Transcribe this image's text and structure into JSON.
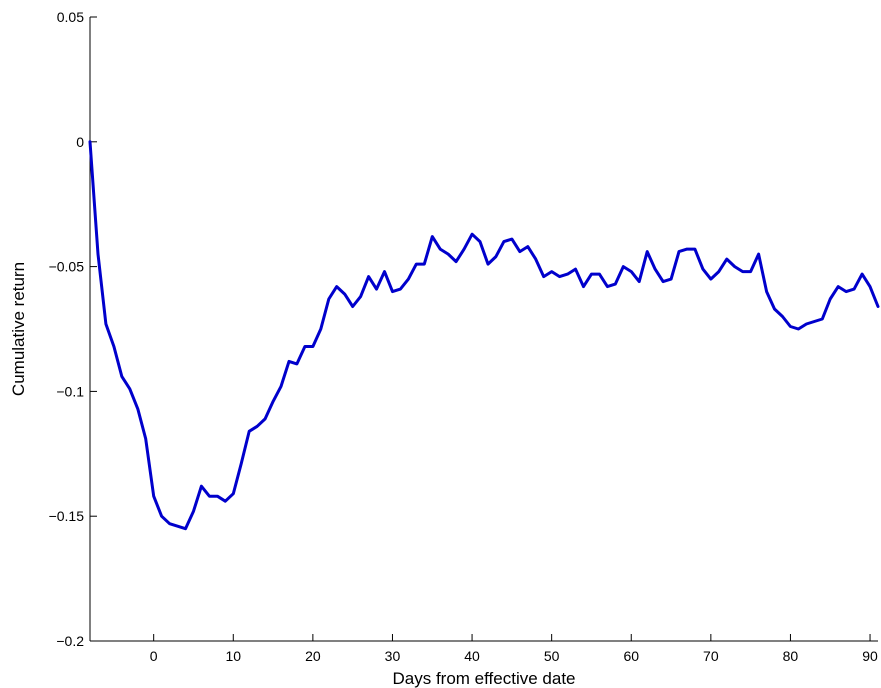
{
  "chart_data": {
    "type": "line",
    "xlabel": "Days from effective date",
    "ylabel": "Cumulative return",
    "xlim": [
      -8,
      91
    ],
    "ylim": [
      -0.2,
      0.05
    ],
    "x_ticks": [
      0,
      10,
      20,
      30,
      40,
      50,
      60,
      70,
      80,
      90
    ],
    "x_tick_labels": [
      "0",
      "10",
      "20",
      "30",
      "40",
      "50",
      "60",
      "70",
      "80",
      "90"
    ],
    "y_ticks": [
      0.05,
      0,
      -0.05,
      -0.1,
      -0.15,
      -0.2
    ],
    "y_tick_labels": [
      "0.05",
      "0",
      "−0.05",
      "−0.1",
      "−0.15",
      "−0.2"
    ],
    "grid": false,
    "line_color": "#0000cc",
    "series": [
      {
        "x": [
          -8,
          -7,
          -6,
          -5,
          -4,
          -3,
          -2,
          -1,
          0,
          1,
          2,
          3,
          4,
          5,
          6,
          7,
          8,
          9,
          10,
          11,
          12,
          13,
          14,
          15,
          16,
          17,
          18,
          19,
          20,
          21,
          22,
          23,
          24,
          25,
          26,
          27,
          28,
          29,
          30,
          31,
          32,
          33,
          34,
          35,
          36,
          37,
          38,
          39,
          40,
          41,
          42,
          43,
          44,
          45,
          46,
          47,
          48,
          49,
          50,
          51,
          52,
          53,
          54,
          55,
          56,
          57,
          58,
          59,
          60,
          61,
          62,
          63,
          64,
          65,
          66,
          67,
          68,
          69,
          70,
          71,
          72,
          73,
          74,
          75,
          76,
          77,
          78,
          79,
          80,
          81,
          82,
          83,
          84,
          85,
          86,
          87,
          88,
          89,
          90,
          91
        ],
        "values": [
          0,
          -0.045,
          -0.073,
          -0.082,
          -0.094,
          -0.099,
          -0.107,
          -0.119,
          -0.142,
          -0.15,
          -0.153,
          -0.154,
          -0.155,
          -0.148,
          -0.138,
          -0.142,
          -0.142,
          -0.144,
          -0.141,
          -0.129,
          -0.116,
          -0.114,
          -0.111,
          -0.104,
          -0.098,
          -0.088,
          -0.089,
          -0.082,
          -0.082,
          -0.075,
          -0.063,
          -0.058,
          -0.061,
          -0.066,
          -0.062,
          -0.054,
          -0.059,
          -0.052,
          -0.06,
          -0.059,
          -0.055,
          -0.049,
          -0.049,
          -0.038,
          -0.043,
          -0.045,
          -0.048,
          -0.043,
          -0.037,
          -0.04,
          -0.049,
          -0.046,
          -0.04,
          -0.039,
          -0.044,
          -0.042,
          -0.047,
          -0.054,
          -0.052,
          -0.054,
          -0.053,
          -0.051,
          -0.058,
          -0.053,
          -0.053,
          -0.058,
          -0.057,
          -0.05,
          -0.052,
          -0.056,
          -0.044,
          -0.051,
          -0.056,
          -0.055,
          -0.044,
          -0.043,
          -0.043,
          -0.051,
          -0.055,
          -0.052,
          -0.047,
          -0.05,
          -0.052,
          -0.052,
          -0.045,
          -0.06,
          -0.067,
          -0.07,
          -0.074,
          -0.075,
          -0.073,
          -0.072,
          -0.071,
          -0.063,
          -0.058,
          -0.06,
          -0.059,
          -0.053,
          -0.058,
          -0.066
        ]
      }
    ]
  }
}
